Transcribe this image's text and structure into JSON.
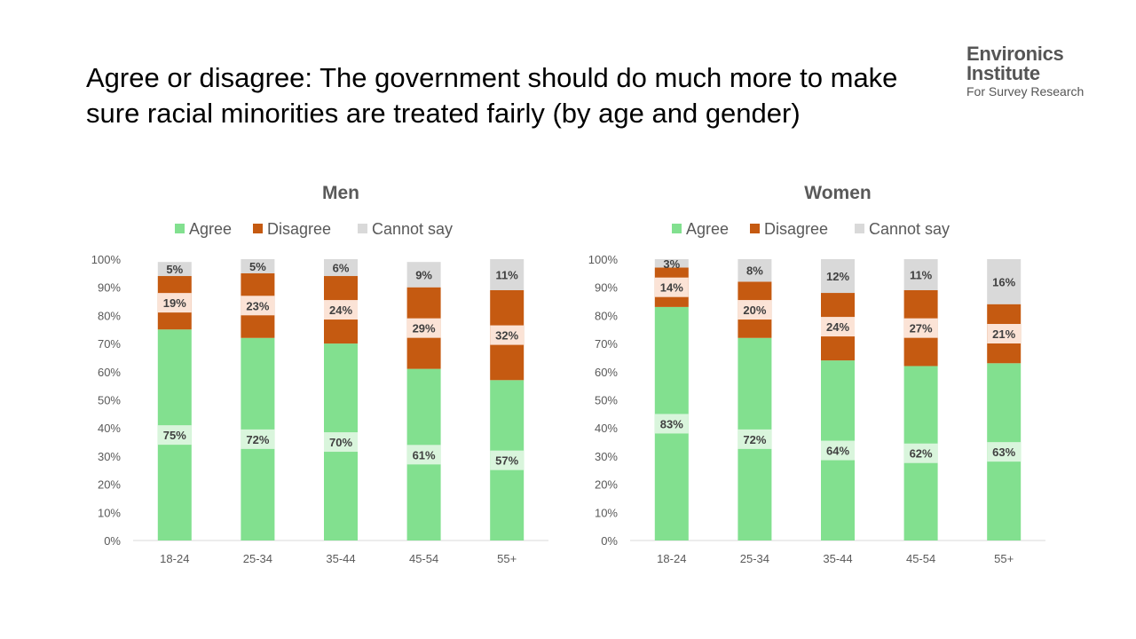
{
  "title": "Agree or disagree: The government should do much more to make sure racial minorities are treated fairly (by age and gender)",
  "logo": {
    "line1": "Environics",
    "line2": "Institute",
    "line3": "For Survey Research"
  },
  "colors": {
    "Agree": "#82E08F",
    "Disagree": "#C55A11",
    "Cannot say": "#D9D9D9",
    "agree_label_bg": "#D9F5DC",
    "disagree_label_bg": "#FBE3D6",
    "axis": "#595959"
  },
  "chart_data": [
    {
      "type": "bar",
      "stacked": true,
      "title": "Men",
      "categories": [
        "18-24",
        "25-34",
        "35-44",
        "45-54",
        "55+"
      ],
      "series": [
        {
          "name": "Agree",
          "values": [
            75,
            72,
            70,
            61,
            57
          ]
        },
        {
          "name": "Disagree",
          "values": [
            19,
            23,
            24,
            29,
            32
          ]
        },
        {
          "name": "Cannot say",
          "values": [
            5,
            5,
            6,
            9,
            11
          ]
        }
      ],
      "yticks": [
        "0%",
        "10%",
        "20%",
        "30%",
        "40%",
        "50%",
        "60%",
        "70%",
        "80%",
        "90%",
        "100%"
      ],
      "ylim": [
        0,
        100
      ],
      "legend": "top"
    },
    {
      "type": "bar",
      "stacked": true,
      "title": "Women",
      "categories": [
        "18-24",
        "25-34",
        "35-44",
        "45-54",
        "55+"
      ],
      "series": [
        {
          "name": "Agree",
          "values": [
            83,
            72,
            64,
            62,
            63
          ]
        },
        {
          "name": "Disagree",
          "values": [
            14,
            20,
            24,
            27,
            21
          ]
        },
        {
          "name": "Cannot say",
          "values": [
            3,
            8,
            12,
            11,
            16
          ]
        }
      ],
      "yticks": [
        "0%",
        "10%",
        "20%",
        "30%",
        "40%",
        "50%",
        "60%",
        "70%",
        "80%",
        "90%",
        "100%"
      ],
      "ylim": [
        0,
        100
      ],
      "legend": "top"
    }
  ]
}
